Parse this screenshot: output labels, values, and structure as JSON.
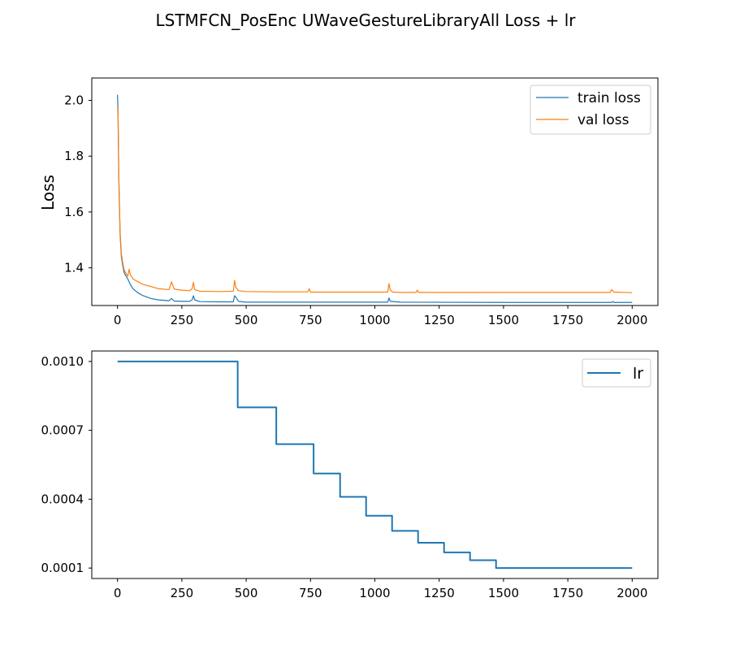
{
  "figure": {
    "title": "LSTMFCN_PosEnc UWaveGestureLibraryAll Loss + lr"
  },
  "chart_data": [
    {
      "type": "line",
      "title": "",
      "xlabel": "",
      "ylabel": "Loss",
      "xlim": [
        -100,
        2100
      ],
      "ylim": [
        1.265,
        2.08
      ],
      "xticks": [
        0,
        250,
        500,
        750,
        1000,
        1250,
        1500,
        1750,
        2000
      ],
      "xtick_labels": [
        "0",
        "250",
        "500",
        "750",
        "1000",
        "1250",
        "1500",
        "1750",
        "2000"
      ],
      "yticks": [
        1.4,
        1.6,
        1.8,
        2.0
      ],
      "ytick_labels": [
        "1.4",
        "1.6",
        "1.8",
        "2.0"
      ],
      "grid": false,
      "legend": "top-right",
      "series": [
        {
          "name": "train loss",
          "color": "#1f77b4",
          "x": [
            0,
            2,
            5,
            10,
            15,
            20,
            25,
            30,
            40,
            50,
            60,
            80,
            100,
            130,
            160,
            200,
            210,
            220,
            250,
            280,
            290,
            295,
            300,
            320,
            400,
            450,
            455,
            460,
            470,
            500,
            600,
            800,
            1000,
            1050,
            1055,
            1060,
            1100,
            1500,
            1900,
            1920,
            1925,
            1930,
            2000
          ],
          "y": [
            2.02,
            1.96,
            1.72,
            1.52,
            1.44,
            1.41,
            1.385,
            1.375,
            1.36,
            1.34,
            1.325,
            1.31,
            1.3,
            1.29,
            1.285,
            1.282,
            1.29,
            1.281,
            1.28,
            1.28,
            1.285,
            1.3,
            1.285,
            1.279,
            1.278,
            1.278,
            1.3,
            1.295,
            1.28,
            1.277,
            1.277,
            1.277,
            1.277,
            1.277,
            1.292,
            1.28,
            1.277,
            1.276,
            1.276,
            1.276,
            1.279,
            1.276,
            1.276
          ]
        },
        {
          "name": "val loss",
          "color": "#ff7f0e",
          "x": [
            0,
            2,
            5,
            10,
            15,
            20,
            25,
            30,
            40,
            45,
            50,
            60,
            80,
            100,
            130,
            160,
            200,
            205,
            210,
            220,
            250,
            280,
            290,
            295,
            300,
            320,
            400,
            450,
            455,
            460,
            470,
            500,
            600,
            740,
            745,
            750,
            800,
            1000,
            1050,
            1055,
            1060,
            1070,
            1100,
            1160,
            1165,
            1170,
            1500,
            1900,
            1915,
            1920,
            1930,
            2000
          ],
          "y": [
            1.98,
            1.95,
            1.73,
            1.53,
            1.45,
            1.42,
            1.395,
            1.385,
            1.37,
            1.395,
            1.375,
            1.36,
            1.35,
            1.34,
            1.333,
            1.325,
            1.322,
            1.335,
            1.35,
            1.324,
            1.32,
            1.318,
            1.325,
            1.348,
            1.322,
            1.316,
            1.315,
            1.316,
            1.355,
            1.33,
            1.318,
            1.315,
            1.314,
            1.314,
            1.325,
            1.313,
            1.313,
            1.313,
            1.313,
            1.343,
            1.32,
            1.313,
            1.312,
            1.312,
            1.32,
            1.312,
            1.312,
            1.312,
            1.312,
            1.322,
            1.313,
            1.311
          ]
        }
      ]
    },
    {
      "type": "line",
      "title": "",
      "xlabel": "",
      "ylabel": "",
      "xlim": [
        -100,
        2100
      ],
      "ylim": [
        5.45e-05,
        0.0010455
      ],
      "xticks": [
        0,
        250,
        500,
        750,
        1000,
        1250,
        1500,
        1750,
        2000
      ],
      "xtick_labels": [
        "0",
        "250",
        "500",
        "750",
        "1000",
        "1250",
        "1500",
        "1750",
        "2000"
      ],
      "yticks": [
        0.0001,
        0.0004,
        0.0007,
        0.001
      ],
      "ytick_labels": [
        "0.0001",
        "0.0004",
        "0.0007",
        "0.0010"
      ],
      "grid": false,
      "legend": "top-right",
      "series": [
        {
          "name": "lr",
          "color": "#1f77b4",
          "step": true,
          "x": [
            0,
            467,
            467,
            617,
            617,
            762,
            762,
            865,
            865,
            966,
            966,
            1067,
            1067,
            1168,
            1168,
            1269,
            1269,
            1370,
            1370,
            1471,
            1471,
            2000
          ],
          "y": [
            0.001,
            0.001,
            0.0008,
            0.0008,
            0.00064,
            0.00064,
            0.000512,
            0.000512,
            0.00041,
            0.00041,
            0.000328,
            0.000328,
            0.000262,
            0.000262,
            0.00021,
            0.00021,
            0.000168,
            0.000168,
            0.000134,
            0.000134,
            0.0001,
            0.0001
          ]
        }
      ]
    }
  ]
}
